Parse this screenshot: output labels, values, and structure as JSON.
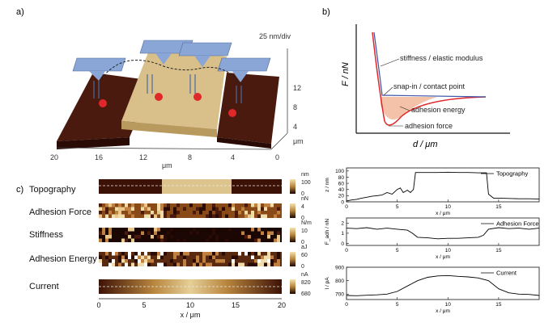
{
  "panels": {
    "a": {
      "label": "a)",
      "scale_text": "25 nm/div",
      "x_axis_unit": "μm",
      "x_ticks": [
        "20",
        "16",
        "12",
        "8",
        "4",
        "0"
      ],
      "y_ticks": [
        "μm",
        "4",
        "8",
        "12"
      ]
    },
    "b": {
      "label": "b)",
      "ylabel": "F / nN",
      "xlabel": "d / μm",
      "annotations": {
        "stiffness": "stiffness / elastic modulus",
        "snapin": "snap-in / contact point",
        "energy": "adhesion energy",
        "force": "adhesion force"
      }
    },
    "c": {
      "label": "c)",
      "maps": [
        {
          "name": "Topography",
          "unit": "nm",
          "max": "100",
          "min": "0"
        },
        {
          "name": "Adhesion Force",
          "unit": "nN",
          "max": "4",
          "min": "0"
        },
        {
          "name": "Stiffness",
          "unit": "N/m",
          "max": "10",
          "min": "0"
        },
        {
          "name": "Adhesion Energy",
          "unit": "aJ",
          "max": "60",
          "min": "0"
        },
        {
          "name": "Current",
          "unit": "nA",
          "max": "820",
          "min": "680"
        }
      ],
      "x_ticks": [
        "0",
        "5",
        "10",
        "15",
        "20"
      ],
      "xlabel": "x / μm"
    }
  },
  "chart_data": [
    {
      "type": "line",
      "title": "",
      "xlabel": "x / μm",
      "ylabel": "z / nm",
      "legend": "Topography",
      "legend_position": "top-right",
      "xlim": [
        0,
        19
      ],
      "ylim": [
        0,
        110
      ],
      "xticks": [
        "0",
        "5",
        "10",
        "15"
      ],
      "yticks": [
        "0",
        "20",
        "40",
        "60",
        "80",
        "100"
      ],
      "x": [
        0,
        0.5,
        1,
        1.5,
        2,
        2.5,
        3,
        3.5,
        4,
        4.5,
        5,
        5.3,
        5.6,
        6,
        6.3,
        6.6,
        6.8,
        7,
        8,
        9,
        10,
        11,
        12,
        13,
        13.8,
        14,
        14.5,
        15,
        16,
        17,
        18,
        19
      ],
      "y": [
        3,
        6,
        8,
        12,
        15,
        18,
        20,
        22,
        30,
        25,
        40,
        45,
        30,
        38,
        30,
        40,
        95,
        95,
        95,
        95,
        96,
        95,
        95,
        94,
        94,
        25,
        12,
        12,
        11,
        10,
        10,
        9
      ],
      "color": "#000000"
    },
    {
      "type": "line",
      "title": "",
      "xlabel": "x / μm",
      "ylabel": "F_adh / nN",
      "legend": "Adhesion Force",
      "legend_position": "top-right",
      "xlim": [
        0,
        19
      ],
      "ylim": [
        -0.2,
        2.5
      ],
      "xticks": [
        "0",
        "5",
        "10",
        "15"
      ],
      "yticks": [
        "0",
        "1",
        "2"
      ],
      "x": [
        0,
        1,
        2,
        3,
        4,
        5,
        6,
        6.5,
        7,
        8,
        9,
        10,
        11,
        12,
        13,
        13.5,
        14,
        15,
        16,
        17,
        18,
        19
      ],
      "y": [
        1.5,
        1.45,
        1.55,
        1.4,
        1.5,
        1.4,
        1.3,
        1.0,
        0.6,
        0.55,
        0.45,
        0.5,
        0.5,
        0.55,
        0.6,
        0.8,
        1.4,
        1.55,
        1.45,
        1.5,
        1.4,
        1.5
      ],
      "color": "#000000"
    },
    {
      "type": "line",
      "title": "",
      "xlabel": "x / μm",
      "ylabel": "I / pA",
      "legend": "Current",
      "legend_position": "top-right",
      "xlim": [
        0,
        19
      ],
      "ylim": [
        660,
        900
      ],
      "xticks": [
        "0",
        "5",
        "10",
        "15"
      ],
      "yticks": [
        "700",
        "800",
        "900"
      ],
      "x": [
        0,
        1,
        2,
        3,
        4,
        5,
        6,
        7,
        8,
        9,
        10,
        11,
        12,
        13,
        14,
        15,
        16,
        17,
        18,
        19
      ],
      "y": [
        690,
        688,
        692,
        695,
        700,
        720,
        760,
        800,
        825,
        835,
        838,
        832,
        828,
        820,
        800,
        740,
        710,
        700,
        698,
        690
      ],
      "color": "#000000"
    }
  ]
}
